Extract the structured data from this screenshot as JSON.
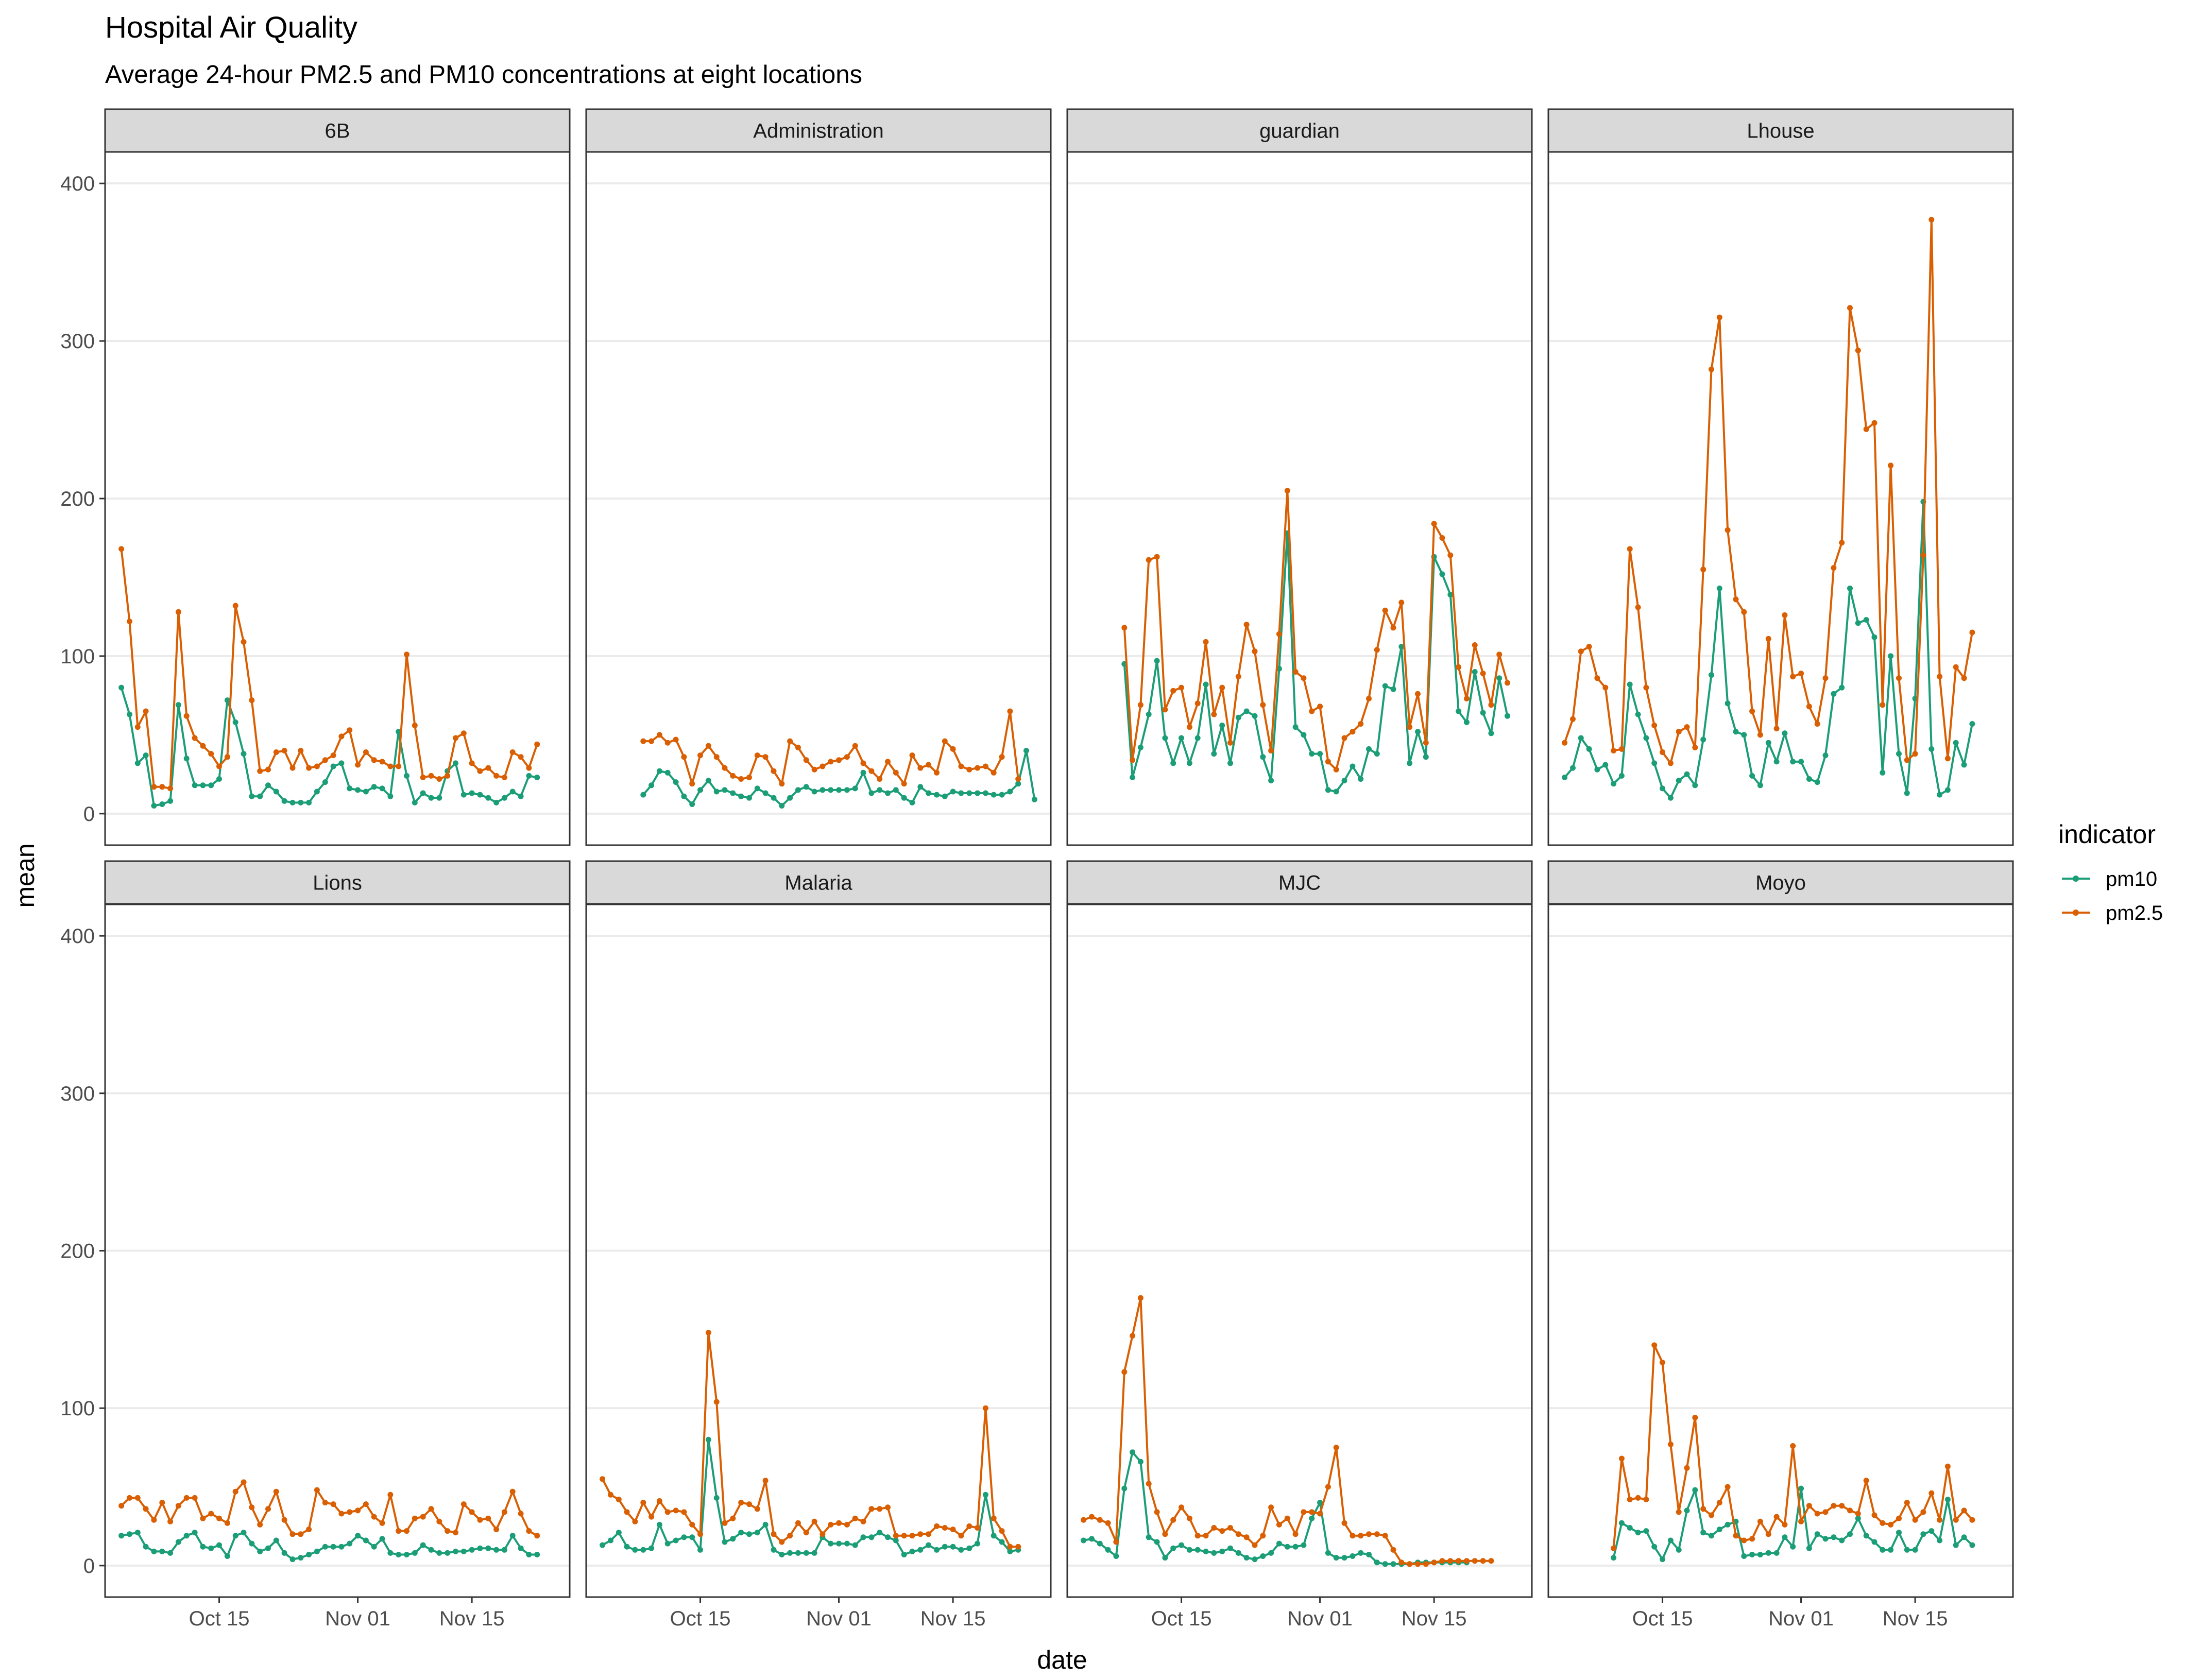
{
  "title": "Hospital Air Quality",
  "subtitle": "Average 24-hour PM2.5 and PM10 concentrations at eight locations",
  "chart_data": {
    "type": "line",
    "facets": [
      "6B",
      "Administration",
      "guardian",
      "Lhouse",
      "Lions",
      "Malaria",
      "MJC",
      "Moyo"
    ],
    "xlabel": "date",
    "ylabel": "mean",
    "x_ticks": [
      "Oct 15",
      "Nov 01",
      "Nov 15"
    ],
    "x_tick_dates": [
      "2021-10-15",
      "2021-11-01",
      "2021-11-15"
    ],
    "xlim": [
      "2021-10-01",
      "2021-11-27"
    ],
    "y_ticks": [
      0,
      100,
      200,
      300,
      400
    ],
    "ylim": [
      -20,
      420
    ],
    "grid": true,
    "legend": {
      "title": "indicator",
      "position": "right",
      "entries": [
        "pm10",
        "pm2.5"
      ]
    },
    "colors": {
      "pm10": "#1b9e77",
      "pm2.5": "#d95f02"
    },
    "panels": [
      {
        "name": "6B",
        "start": "2021-10-03",
        "series": [
          {
            "name": "pm10",
            "values": [
              80,
              63,
              32,
              37,
              5,
              6,
              8,
              69,
              35,
              18,
              18,
              18,
              22,
              72,
              58,
              38,
              11,
              11,
              18,
              14,
              8,
              7,
              7,
              7,
              14,
              20,
              30,
              32,
              16,
              15,
              14,
              17,
              16,
              11,
              52,
              24,
              7,
              13,
              10,
              10,
              27,
              32,
              12,
              13,
              12,
              10,
              7,
              10,
              14,
              11,
              24,
              23
            ]
          },
          {
            "name": "pm2.5",
            "values": [
              168,
              122,
              55,
              65,
              17,
              17,
              16,
              128,
              62,
              48,
              43,
              38,
              30,
              36,
              132,
              109,
              72,
              27,
              28,
              39,
              40,
              29,
              40,
              29,
              30,
              34,
              37,
              49,
              53,
              31,
              39,
              34,
              33,
              30,
              30,
              101,
              56,
              23,
              24,
              22,
              24,
              48,
              51,
              32,
              27,
              29,
              24,
              23,
              39,
              36,
              29,
              44
            ]
          }
        ]
      },
      {
        "name": "Administration",
        "start": "2021-10-08",
        "series": [
          {
            "name": "pm10",
            "values": [
              12,
              18,
              27,
              26,
              20,
              11,
              6,
              15,
              21,
              14,
              15,
              13,
              11,
              10,
              16,
              13,
              10,
              5,
              10,
              15,
              17,
              14,
              15,
              15,
              15,
              15,
              16,
              26,
              13,
              15,
              13,
              15,
              10,
              7,
              17,
              13,
              12,
              11,
              14,
              13,
              13,
              13,
              13,
              12,
              12,
              14,
              19,
              40,
              9
            ]
          },
          {
            "name": "pm2.5",
            "values": [
              46,
              46,
              50,
              45,
              47,
              36,
              19,
              37,
              43,
              36,
              29,
              24,
              22,
              23,
              37,
              36,
              27,
              19,
              46,
              42,
              34,
              28,
              30,
              33,
              34,
              36,
              43,
              32,
              27,
              22,
              33,
              26,
              19,
              37,
              29,
              31,
              26,
              46,
              41,
              30,
              28,
              29,
              30,
              26,
              36,
              65,
              22
            ]
          }
        ]
      },
      {
        "name": "guardian",
        "start": "2021-10-08",
        "series": [
          {
            "name": "pm10",
            "values": [
              95,
              23,
              42,
              63,
              97,
              48,
              32,
              48,
              32,
              48,
              82,
              38,
              56,
              32,
              61,
              65,
              62,
              36,
              21,
              92,
              178,
              55,
              50,
              38,
              38,
              15,
              14,
              21,
              30,
              22,
              41,
              38,
              81,
              79,
              106,
              32,
              52,
              36,
              163,
              152,
              139,
              65,
              58,
              90,
              64,
              51,
              86,
              62
            ]
          },
          {
            "name": "pm2.5",
            "values": [
              118,
              34,
              69,
              161,
              163,
              66,
              78,
              80,
              55,
              70,
              109,
              63,
              80,
              45,
              87,
              120,
              103,
              69,
              40,
              114,
              205,
              90,
              86,
              65,
              68,
              33,
              28,
              48,
              52,
              57,
              73,
              104,
              129,
              118,
              134,
              55,
              76,
              45,
              184,
              175,
              164,
              93,
              73,
              107,
              89,
              69,
              101,
              83
            ]
          }
        ]
      },
      {
        "name": "Lhouse",
        "start": "2021-10-03",
        "series": [
          {
            "name": "pm10",
            "values": [
              23,
              29,
              48,
              41,
              28,
              31,
              19,
              24,
              82,
              63,
              48,
              32,
              16,
              10,
              21,
              25,
              18,
              47,
              88,
              143,
              70,
              52,
              50,
              24,
              18,
              45,
              33,
              51,
              33,
              33,
              22,
              20,
              37,
              76,
              80,
              143,
              121,
              123,
              112,
              26,
              100,
              38,
              13,
              73,
              198,
              41,
              12,
              15,
              45,
              31,
              57
            ]
          },
          {
            "name": "pm2.5",
            "values": [
              45,
              60,
              103,
              106,
              86,
              80,
              40,
              41,
              168,
              131,
              80,
              56,
              39,
              32,
              52,
              55,
              42,
              155,
              282,
              315,
              180,
              136,
              128,
              65,
              50,
              111,
              54,
              126,
              87,
              89,
              68,
              57,
              86,
              156,
              172,
              321,
              294,
              244,
              248,
              69,
              221,
              86,
              34,
              38,
              164,
              377,
              87,
              35,
              93,
              86,
              115
            ]
          }
        ]
      },
      {
        "name": "Lions",
        "start": "2021-10-03",
        "series": [
          {
            "name": "pm10",
            "values": [
              19,
              20,
              21,
              12,
              9,
              9,
              8,
              15,
              19,
              21,
              12,
              11,
              13,
              6,
              19,
              21,
              14,
              9,
              11,
              16,
              8,
              4,
              5,
              7,
              9,
              12,
              12,
              12,
              14,
              19,
              16,
              12,
              17,
              8,
              7,
              7,
              8,
              13,
              10,
              8,
              8,
              9,
              9,
              10,
              11,
              11,
              10,
              10,
              19,
              11,
              7,
              7
            ]
          },
          {
            "name": "pm2.5",
            "values": [
              38,
              43,
              43,
              36,
              29,
              40,
              28,
              38,
              43,
              43,
              30,
              33,
              30,
              27,
              47,
              53,
              37,
              26,
              36,
              47,
              29,
              20,
              20,
              23,
              48,
              40,
              39,
              33,
              34,
              35,
              39,
              31,
              27,
              45,
              22,
              22,
              30,
              31,
              36,
              28,
              22,
              21,
              39,
              34,
              29,
              30,
              23,
              34,
              47,
              33,
              22,
              19
            ]
          }
        ]
      },
      {
        "name": "Malaria",
        "start": "2021-10-03",
        "series": [
          {
            "name": "pm10",
            "values": [
              13,
              16,
              21,
              12,
              10,
              10,
              11,
              26,
              14,
              16,
              18,
              18,
              10,
              80,
              43,
              15,
              17,
              21,
              20,
              21,
              26,
              10,
              7,
              8,
              8,
              8,
              8,
              18,
              14,
              14,
              14,
              13,
              18,
              18,
              21,
              18,
              16,
              7,
              9,
              10,
              13,
              10,
              12,
              12,
              10,
              11,
              14,
              45,
              19,
              15,
              9,
              10
            ]
          },
          {
            "name": "pm2.5",
            "values": [
              55,
              45,
              42,
              34,
              28,
              40,
              31,
              41,
              34,
              35,
              34,
              26,
              20,
              148,
              104,
              27,
              30,
              40,
              39,
              36,
              54,
              20,
              15,
              19,
              27,
              21,
              28,
              20,
              26,
              27,
              26,
              30,
              28,
              36,
              36,
              37,
              19,
              19,
              19,
              20,
              20,
              25,
              24,
              23,
              19,
              25,
              24,
              100,
              30,
              22,
              12,
              12
            ]
          }
        ]
      },
      {
        "name": "MJC",
        "start": "2021-10-03",
        "series": [
          {
            "name": "pm10",
            "values": [
              16,
              17,
              14,
              10,
              6,
              49,
              72,
              66,
              18,
              15,
              5,
              11,
              13,
              10,
              10,
              9,
              8,
              9,
              11,
              8,
              5,
              4,
              6,
              8,
              14,
              12,
              12,
              13,
              30,
              40,
              8,
              5,
              5,
              6,
              8,
              7,
              2,
              1,
              1,
              1,
              1,
              2,
              2,
              2,
              2,
              2,
              2,
              2
            ]
          },
          {
            "name": "pm2.5",
            "values": [
              29,
              31,
              29,
              27,
              15,
              123,
              146,
              170,
              52,
              34,
              20,
              29,
              37,
              30,
              19,
              19,
              24,
              22,
              24,
              20,
              18,
              13,
              19,
              37,
              26,
              30,
              20,
              34,
              34,
              33,
              50,
              75,
              27,
              19,
              19,
              20,
              20,
              19,
              10,
              2,
              1,
              1,
              1,
              2,
              3,
              3,
              3,
              3,
              3,
              3,
              3
            ]
          }
        ]
      },
      {
        "name": "Moyo",
        "start": "2021-10-09",
        "series": [
          {
            "name": "pm10",
            "values": [
              5,
              27,
              24,
              21,
              22,
              12,
              4,
              16,
              10,
              35,
              48,
              21,
              19,
              23,
              26,
              28,
              6,
              7,
              7,
              8,
              8,
              18,
              12,
              49,
              11,
              20,
              17,
              18,
              16,
              20,
              30,
              19,
              15,
              10,
              10,
              21,
              10,
              10,
              20,
              22,
              16,
              42,
              13,
              18,
              13
            ]
          },
          {
            "name": "pm2.5",
            "values": [
              11,
              68,
              42,
              43,
              42,
              140,
              129,
              77,
              34,
              62,
              94,
              36,
              32,
              40,
              50,
              19,
              16,
              17,
              28,
              20,
              31,
              26,
              76,
              28,
              38,
              33,
              34,
              38,
              38,
              35,
              33,
              54,
              32,
              27,
              26,
              30,
              40,
              29,
              34,
              46,
              29,
              63,
              29,
              35,
              29
            ]
          }
        ]
      }
    ]
  }
}
